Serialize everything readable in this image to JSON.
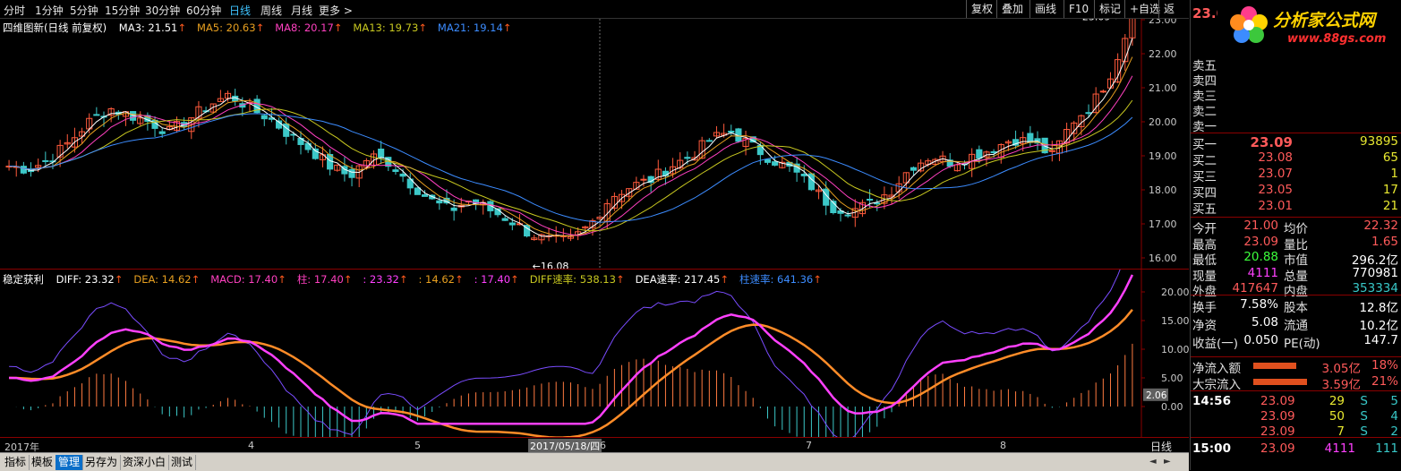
{
  "toolbar": {
    "timeframes": [
      "分时",
      "1分钟",
      "5分钟",
      "15分钟",
      "30分钟",
      "60分钟",
      "日线",
      "周线",
      "月线",
      "更多 >"
    ],
    "active_timeframe": "日线",
    "buttons": [
      "复权",
      "叠加",
      "画线",
      "F10",
      "标记",
      "+自选",
      "返回"
    ]
  },
  "main_chart": {
    "title": "四维图新(日线 前复权)",
    "ma": [
      {
        "label": "MA3: 21.51",
        "color": "#ffffff"
      },
      {
        "label": "MA5: 20.63",
        "color": "#e8a020"
      },
      {
        "label": "MA8: 20.17",
        "color": "#ff40c0"
      },
      {
        "label": "MA13: 19.73",
        "color": "#c8c820"
      },
      {
        "label": "MA21: 19.14",
        "color": "#3c8cff"
      }
    ],
    "y_ticks": [
      "23.00",
      "22.00",
      "21.00",
      "20.00",
      "19.00",
      "18.00",
      "17.00",
      "16.00"
    ],
    "high_label": "23.09",
    "low_label": "←16.08"
  },
  "macd_chart": {
    "title": "稳定获利",
    "items": [
      {
        "label": "DIFF: 23.32",
        "color": "#ffffff"
      },
      {
        "label": "DEA: 14.62",
        "color": "#e8a020"
      },
      {
        "label": "MACD: 17.40",
        "color": "#ff40c0"
      },
      {
        "label": "柱: 17.40",
        "color": "#ff40c0"
      },
      {
        "label": ": 23.32",
        "color": "#ff40ff"
      },
      {
        "label": ": 14.62",
        "color": "#e8a020"
      },
      {
        "label": ": 17.40",
        "color": "#ff40ff"
      },
      {
        "label": "DIFF速率: 538.13",
        "color": "#c8c820"
      },
      {
        "label": "DEA速率: 217.45",
        "color": "#ffffff"
      },
      {
        "label": "柱速率: 641.36",
        "color": "#3c8cff"
      }
    ],
    "y_ticks": [
      "20.00",
      "15.00",
      "10.00",
      "5.00",
      "0.00"
    ],
    "current_tag": "2.06"
  },
  "x_axis": {
    "labels": [
      "2017年",
      "4",
      "5",
      "6",
      "7",
      "8"
    ],
    "cursor_date": "2017/05/18/四",
    "period_label": "日线"
  },
  "bottom_tabs": [
    "指标",
    "模板",
    "管理",
    "另存为",
    "资深小白",
    "测试"
  ],
  "active_bottom_tab": "管理",
  "logo": {
    "text": "分析家公式网",
    "url": "www.88gs.com"
  },
  "quote": {
    "price_header": "23.0",
    "sell": [
      {
        "label": "卖五"
      },
      {
        "label": "卖四"
      },
      {
        "label": "卖三"
      },
      {
        "label": "卖二"
      },
      {
        "label": "卖一"
      }
    ],
    "buy": [
      {
        "label": "买一",
        "price": "23.09",
        "vol": "93895"
      },
      {
        "label": "买二",
        "price": "23.08",
        "vol": "65"
      },
      {
        "label": "买三",
        "price": "23.07",
        "vol": "1"
      },
      {
        "label": "买四",
        "price": "23.05",
        "vol": "17"
      },
      {
        "label": "买五",
        "price": "23.01",
        "vol": "21"
      }
    ],
    "stats": [
      {
        "l1": "今开",
        "v1": "21.00",
        "c1": "red",
        "l2": "均价",
        "v2": "22.32",
        "c2": "red"
      },
      {
        "l1": "最高",
        "v1": "23.09",
        "c1": "red",
        "l2": "量比",
        "v2": "1.65",
        "c2": "red"
      },
      {
        "l1": "最低",
        "v1": "20.88",
        "c1": "green",
        "l2": "市值",
        "v2": "296.2亿",
        "c2": "wht"
      },
      {
        "l1": "现量",
        "v1": "4111",
        "c1": "mag",
        "l2": "总量",
        "v2": "770981",
        "c2": "wht"
      },
      {
        "l1": "外盘",
        "v1": "417647",
        "c1": "red",
        "l2": "内盘",
        "v2": "353334",
        "c2": "cyan"
      }
    ],
    "stats2": [
      {
        "l1": "换手",
        "v1": "7.58%",
        "c1": "wht",
        "l2": "股本",
        "v2": "12.8亿",
        "c2": "wht"
      },
      {
        "l1": "净资",
        "v1": "5.08",
        "c1": "wht",
        "l2": "流通",
        "v2": "10.2亿",
        "c2": "wht"
      },
      {
        "l1": "收益(一)",
        "v1": "0.050",
        "c1": "wht",
        "l2": "PE(动)",
        "v2": "147.7",
        "c2": "wht"
      }
    ],
    "flows": [
      {
        "label": "净流入额",
        "value": "3.05亿",
        "pct": "18%"
      },
      {
        "label": "大宗流入",
        "value": "3.59亿",
        "pct": "21%"
      }
    ],
    "ticks": [
      {
        "time": "14:56",
        "price": "23.09",
        "vol": "29",
        "dir": "S",
        "n": "5"
      },
      {
        "time": "",
        "price": "23.09",
        "vol": "50",
        "dir": "S",
        "n": "4"
      },
      {
        "time": "",
        "price": "23.09",
        "vol": "7",
        "dir": "S",
        "n": "2"
      }
    ],
    "last_tick": {
      "time": "15:00",
      "price": "23.09",
      "vol": "4111",
      "n": "111"
    }
  }
}
